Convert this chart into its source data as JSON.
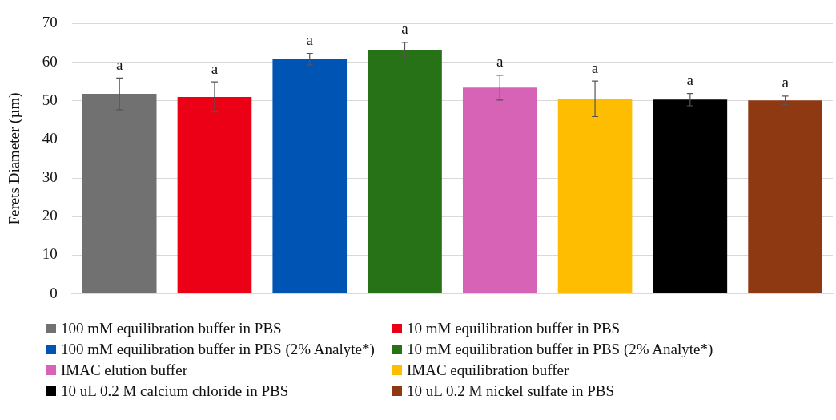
{
  "chart_data": {
    "type": "bar",
    "ylabel": "Ferets Diameter (µm)",
    "categories": [
      null,
      null,
      null,
      null,
      null,
      null,
      null,
      null
    ],
    "series": [
      {
        "name": "100 mM equilibration buffer in PBS",
        "color": "#717171",
        "values": [
          51.8,
          null,
          null,
          null,
          null,
          null,
          null,
          null
        ],
        "errors": [
          4.1,
          null,
          null,
          null,
          null,
          null,
          null,
          null
        ]
      },
      {
        "name": "10 mM equilibration buffer in PBS",
        "color": "#ec0016",
        "values": [
          null,
          51,
          null,
          null,
          null,
          null,
          null,
          null
        ],
        "errors": [
          null,
          3.9,
          null,
          null,
          null,
          null,
          null,
          null
        ]
      },
      {
        "name": "100 mM equilibration buffer in PBS (2% Analyte*)",
        "color": "#0054b4",
        "values": [
          null,
          null,
          60.8,
          null,
          null,
          null,
          null,
          null
        ],
        "errors": [
          null,
          null,
          1.5,
          null,
          null,
          null,
          null,
          null
        ]
      },
      {
        "name": "10 mM equilibration buffer in PBS (2% Analyte*)",
        "color": "#277116",
        "values": [
          null,
          null,
          null,
          63,
          null,
          null,
          null,
          null
        ],
        "errors": [
          null,
          null,
          null,
          2.1,
          null,
          null,
          null,
          null
        ]
      },
      {
        "name": "IMAC elution buffer",
        "color": "#d663b6",
        "values": [
          null,
          null,
          null,
          null,
          53.4,
          null,
          null,
          null
        ],
        "errors": [
          null,
          null,
          null,
          null,
          3.2,
          null,
          null,
          null
        ]
      },
      {
        "name": "IMAC equilibration buffer",
        "color": "#febd00",
        "values": [
          null,
          null,
          null,
          null,
          null,
          50.5,
          null,
          null
        ],
        "errors": [
          null,
          null,
          null,
          null,
          null,
          4.6,
          null,
          null
        ]
      },
      {
        "name": "10 uL 0.2 M calcium chloride in PBS",
        "color": "#000000",
        "values": [
          null,
          null,
          null,
          null,
          null,
          null,
          50.3,
          null
        ],
        "errors": [
          null,
          null,
          null,
          null,
          null,
          null,
          1.6,
          null
        ]
      },
      {
        "name": "10 uL 0.2 M nickel sulfate in PBS",
        "color": "#8f3912",
        "values": [
          null,
          null,
          null,
          null,
          null,
          null,
          null,
          50.1
        ],
        "errors": [
          null,
          null,
          null,
          null,
          null,
          null,
          null,
          1.1
        ]
      }
    ],
    "annotations": [
      "a",
      "a",
      "a",
      "a",
      "a",
      "a",
      "a",
      "a"
    ],
    "ylim": [
      0,
      70
    ],
    "yticks": [
      0,
      10,
      20,
      30,
      40,
      50,
      60,
      70
    ],
    "grid": "y",
    "legend": "bottom"
  }
}
